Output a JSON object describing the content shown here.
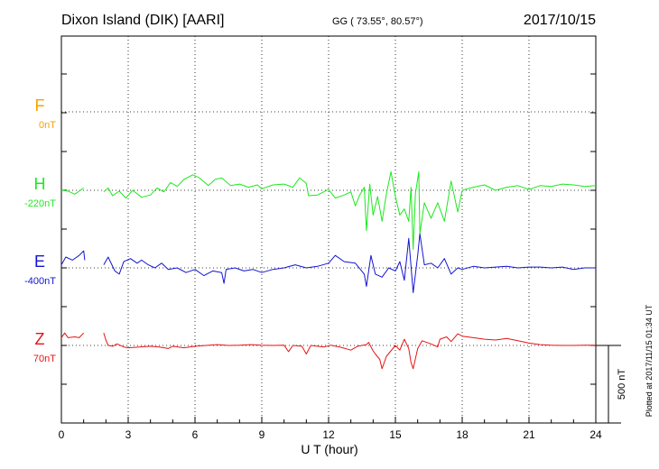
{
  "header": {
    "station": "Dixon Island (DIK)  [AARI]",
    "coords": "GG ( 73.55°,  80.57°)",
    "date": "2017/10/15"
  },
  "colors": {
    "F": "#f5a300",
    "H": "#1ee81e",
    "E": "#1414d2",
    "Z": "#e61414",
    "axis": "#000000"
  },
  "chart_data": {
    "type": "line",
    "title": "",
    "xlabel": "U T (hour)",
    "ylabel": "",
    "xlim": [
      0,
      24
    ],
    "xticks": [
      0,
      3,
      6,
      9,
      12,
      15,
      18,
      21,
      24
    ],
    "xtick_labels": [
      "0",
      "3",
      "6",
      "9",
      "12",
      "15",
      "18",
      "21",
      "24"
    ],
    "grid": true,
    "scale_label": "500 nT",
    "scale_nT": 500,
    "series": [
      {
        "name": "F",
        "baseline": "0nT",
        "data_available": false,
        "points": []
      },
      {
        "name": "H",
        "baseline": "-220nT",
        "data_available": true,
        "points": [
          [
            0.0,
            -220
          ],
          [
            0.3,
            -225
          ],
          [
            0.6,
            -245
          ],
          [
            1.0,
            -205
          ],
          [
            1.05,
            null
          ],
          [
            1.9,
            -230
          ],
          [
            2.1,
            -205
          ],
          [
            2.3,
            -255
          ],
          [
            2.6,
            -225
          ],
          [
            2.9,
            -270
          ],
          [
            3.2,
            -220
          ],
          [
            3.6,
            -265
          ],
          [
            4.0,
            -250
          ],
          [
            4.3,
            -205
          ],
          [
            4.6,
            -230
          ],
          [
            4.9,
            -170
          ],
          [
            5.2,
            -195
          ],
          [
            5.5,
            -150
          ],
          [
            5.9,
            -120
          ],
          [
            6.2,
            -140
          ],
          [
            6.6,
            -190
          ],
          [
            6.9,
            -150
          ],
          [
            7.2,
            -140
          ],
          [
            7.6,
            -190
          ],
          [
            8.0,
            -180
          ],
          [
            8.4,
            -200
          ],
          [
            8.8,
            -185
          ],
          [
            9.0,
            -210
          ],
          [
            9.5,
            -185
          ],
          [
            10.0,
            -180
          ],
          [
            10.4,
            -200
          ],
          [
            10.7,
            -140
          ],
          [
            11.0,
            -175
          ],
          [
            11.1,
            -255
          ],
          [
            11.5,
            -250
          ],
          [
            12.0,
            -215
          ],
          [
            12.3,
            -270
          ],
          [
            12.7,
            -250
          ],
          [
            13.0,
            -230
          ],
          [
            13.2,
            -320
          ],
          [
            13.4,
            -250
          ],
          [
            13.6,
            -200
          ],
          [
            13.7,
            -480
          ],
          [
            13.85,
            -180
          ],
          [
            14.0,
            -380
          ],
          [
            14.2,
            -260
          ],
          [
            14.4,
            -420
          ],
          [
            14.6,
            -240
          ],
          [
            14.8,
            -100
          ],
          [
            15.0,
            -260
          ],
          [
            15.2,
            -380
          ],
          [
            15.4,
            -340
          ],
          [
            15.6,
            -420
          ],
          [
            15.7,
            -200
          ],
          [
            15.8,
            -600
          ],
          [
            15.9,
            -240
          ],
          [
            16.05,
            -100
          ],
          [
            16.1,
            -500
          ],
          [
            16.3,
            -300
          ],
          [
            16.6,
            -400
          ],
          [
            16.9,
            -300
          ],
          [
            17.2,
            -420
          ],
          [
            17.5,
            -160
          ],
          [
            17.8,
            -360
          ],
          [
            18.0,
            -220
          ],
          [
            18.5,
            -200
          ],
          [
            19.0,
            -185
          ],
          [
            19.5,
            -220
          ],
          [
            20.0,
            -200
          ],
          [
            20.5,
            -190
          ],
          [
            21.0,
            -215
          ],
          [
            21.5,
            -190
          ],
          [
            22.0,
            -195
          ],
          [
            22.5,
            -180
          ],
          [
            23.0,
            -185
          ],
          [
            23.5,
            -195
          ],
          [
            24.0,
            -190
          ]
        ]
      },
      {
        "name": "E",
        "baseline": "-400nT",
        "data_available": true,
        "points": [
          [
            0.0,
            -380
          ],
          [
            0.2,
            -330
          ],
          [
            0.5,
            -350
          ],
          [
            0.8,
            -320
          ],
          [
            1.0,
            -290
          ],
          [
            1.05,
            -350
          ],
          [
            1.05,
            null
          ],
          [
            1.9,
            -380
          ],
          [
            2.1,
            -330
          ],
          [
            2.4,
            -420
          ],
          [
            2.6,
            -440
          ],
          [
            2.8,
            -360
          ],
          [
            3.1,
            -340
          ],
          [
            3.4,
            -370
          ],
          [
            3.6,
            -350
          ],
          [
            3.9,
            -380
          ],
          [
            4.2,
            -400
          ],
          [
            4.5,
            -370
          ],
          [
            4.8,
            -410
          ],
          [
            5.2,
            -400
          ],
          [
            5.6,
            -430
          ],
          [
            6.0,
            -410
          ],
          [
            6.4,
            -450
          ],
          [
            6.8,
            -420
          ],
          [
            7.2,
            -430
          ],
          [
            7.3,
            -500
          ],
          [
            7.4,
            -410
          ],
          [
            7.8,
            -400
          ],
          [
            8.2,
            -420
          ],
          [
            8.6,
            -410
          ],
          [
            9.0,
            -430
          ],
          [
            9.5,
            -410
          ],
          [
            10.0,
            -400
          ],
          [
            10.5,
            -380
          ],
          [
            11.0,
            -400
          ],
          [
            11.5,
            -390
          ],
          [
            12.0,
            -370
          ],
          [
            12.3,
            -320
          ],
          [
            12.7,
            -360
          ],
          [
            13.2,
            -370
          ],
          [
            13.6,
            -440
          ],
          [
            13.7,
            -520
          ],
          [
            13.9,
            -320
          ],
          [
            14.1,
            -440
          ],
          [
            14.4,
            -460
          ],
          [
            14.7,
            -400
          ],
          [
            15.0,
            -420
          ],
          [
            15.2,
            -360
          ],
          [
            15.4,
            -480
          ],
          [
            15.6,
            -210
          ],
          [
            15.8,
            -560
          ],
          [
            16.0,
            -320
          ],
          [
            16.1,
            -180
          ],
          [
            16.3,
            -380
          ],
          [
            16.6,
            -370
          ],
          [
            16.9,
            -400
          ],
          [
            17.2,
            -340
          ],
          [
            17.5,
            -440
          ],
          [
            17.8,
            -400
          ],
          [
            18.0,
            -410
          ],
          [
            18.5,
            -390
          ],
          [
            19.0,
            -400
          ],
          [
            19.5,
            -395
          ],
          [
            20.0,
            -390
          ],
          [
            20.5,
            -400
          ],
          [
            21.0,
            -395
          ],
          [
            21.5,
            -395
          ],
          [
            22.0,
            -400
          ],
          [
            22.5,
            -395
          ],
          [
            23.0,
            -410
          ],
          [
            23.5,
            -400
          ],
          [
            24.0,
            -400
          ]
        ]
      },
      {
        "name": "Z",
        "baseline": "70nT",
        "data_available": true,
        "points": [
          [
            0.0,
            120
          ],
          [
            0.15,
            150
          ],
          [
            0.3,
            120
          ],
          [
            0.6,
            125
          ],
          [
            0.8,
            120
          ],
          [
            1.0,
            150
          ],
          [
            1.05,
            null
          ],
          [
            1.9,
            150
          ],
          [
            2.0,
            105
          ],
          [
            2.1,
            70
          ],
          [
            2.3,
            65
          ],
          [
            2.5,
            80
          ],
          [
            2.8,
            60
          ],
          [
            3.0,
            55
          ],
          [
            3.5,
            60
          ],
          [
            4.0,
            65
          ],
          [
            4.4,
            60
          ],
          [
            4.8,
            50
          ],
          [
            5.0,
            65
          ],
          [
            5.5,
            55
          ],
          [
            6.0,
            65
          ],
          [
            6.5,
            70
          ],
          [
            7.0,
            75
          ],
          [
            7.5,
            70
          ],
          [
            8.0,
            72
          ],
          [
            8.5,
            75
          ],
          [
            9.0,
            72
          ],
          [
            9.5,
            70
          ],
          [
            10.0,
            72
          ],
          [
            10.2,
            30
          ],
          [
            10.4,
            70
          ],
          [
            10.8,
            65
          ],
          [
            11.0,
            15
          ],
          [
            11.2,
            70
          ],
          [
            11.8,
            60
          ],
          [
            12.1,
            72
          ],
          [
            12.5,
            60
          ],
          [
            13.0,
            40
          ],
          [
            13.3,
            65
          ],
          [
            13.7,
            75
          ],
          [
            13.8,
            90
          ],
          [
            14.0,
            35
          ],
          [
            14.1,
            15
          ],
          [
            14.3,
            -20
          ],
          [
            14.4,
            -80
          ],
          [
            14.6,
            0
          ],
          [
            15.0,
            70
          ],
          [
            15.2,
            40
          ],
          [
            15.4,
            110
          ],
          [
            15.6,
            50
          ],
          [
            15.7,
            -40
          ],
          [
            15.8,
            -80
          ],
          [
            16.0,
            50
          ],
          [
            16.2,
            100
          ],
          [
            16.6,
            80
          ],
          [
            16.9,
            60
          ],
          [
            17.0,
            110
          ],
          [
            17.3,
            125
          ],
          [
            17.5,
            95
          ],
          [
            17.8,
            145
          ],
          [
            18.0,
            130
          ],
          [
            18.5,
            120
          ],
          [
            19.0,
            110
          ],
          [
            19.5,
            105
          ],
          [
            20.0,
            115
          ],
          [
            20.5,
            100
          ],
          [
            21.0,
            85
          ],
          [
            21.5,
            75
          ],
          [
            22.0,
            72
          ],
          [
            22.5,
            70
          ],
          [
            23.0,
            70
          ],
          [
            23.5,
            72
          ],
          [
            24.0,
            72
          ]
        ]
      }
    ]
  },
  "footer": {
    "plotted": "Plotted at 2017/11/15 01:34 UT"
  }
}
